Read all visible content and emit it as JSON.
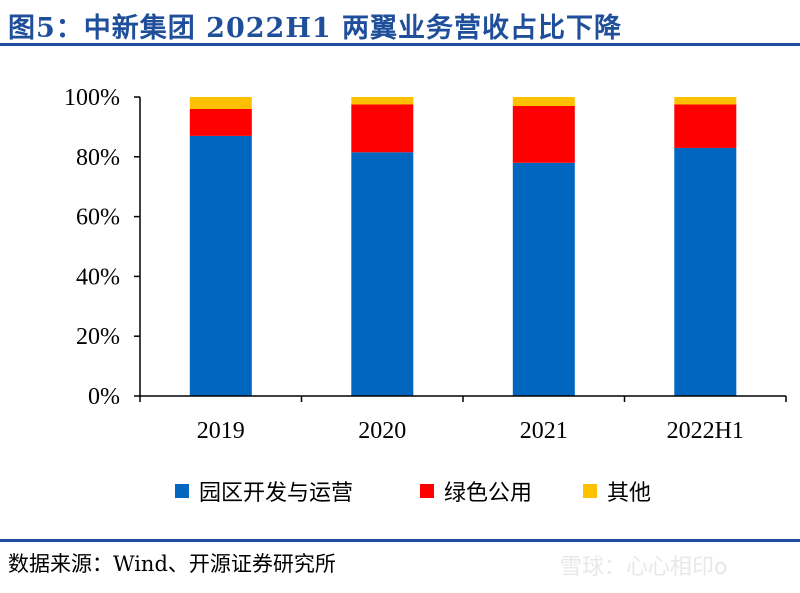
{
  "title": "图5：中新集团 2022H1 两翼业务营收占比下降",
  "source": "数据来源：Wind、开源证券研究所",
  "watermark": "雪球：心心相印o",
  "colors": {
    "blue": "#0066c0",
    "red": "#ff0000",
    "yellow": "#ffc000",
    "title": "#1f4e9a"
  },
  "chart_data": {
    "type": "bar",
    "stacked": true,
    "categories": [
      "2019",
      "2020",
      "2021",
      "2022H1"
    ],
    "series": [
      {
        "name": "园区开发与运营",
        "color": "#0066c0",
        "values": [
          87,
          81.5,
          78,
          83
        ]
      },
      {
        "name": "绿色公用",
        "color": "#ff0000",
        "values": [
          9,
          16,
          19,
          14.5
        ]
      },
      {
        "name": "其他",
        "color": "#ffc000",
        "values": [
          4,
          2.5,
          3,
          2.5
        ]
      }
    ],
    "yticks": [
      "0%",
      "20%",
      "40%",
      "60%",
      "80%",
      "100%"
    ],
    "ylim": [
      0,
      100
    ],
    "legend_position": "bottom",
    "grid": false
  }
}
